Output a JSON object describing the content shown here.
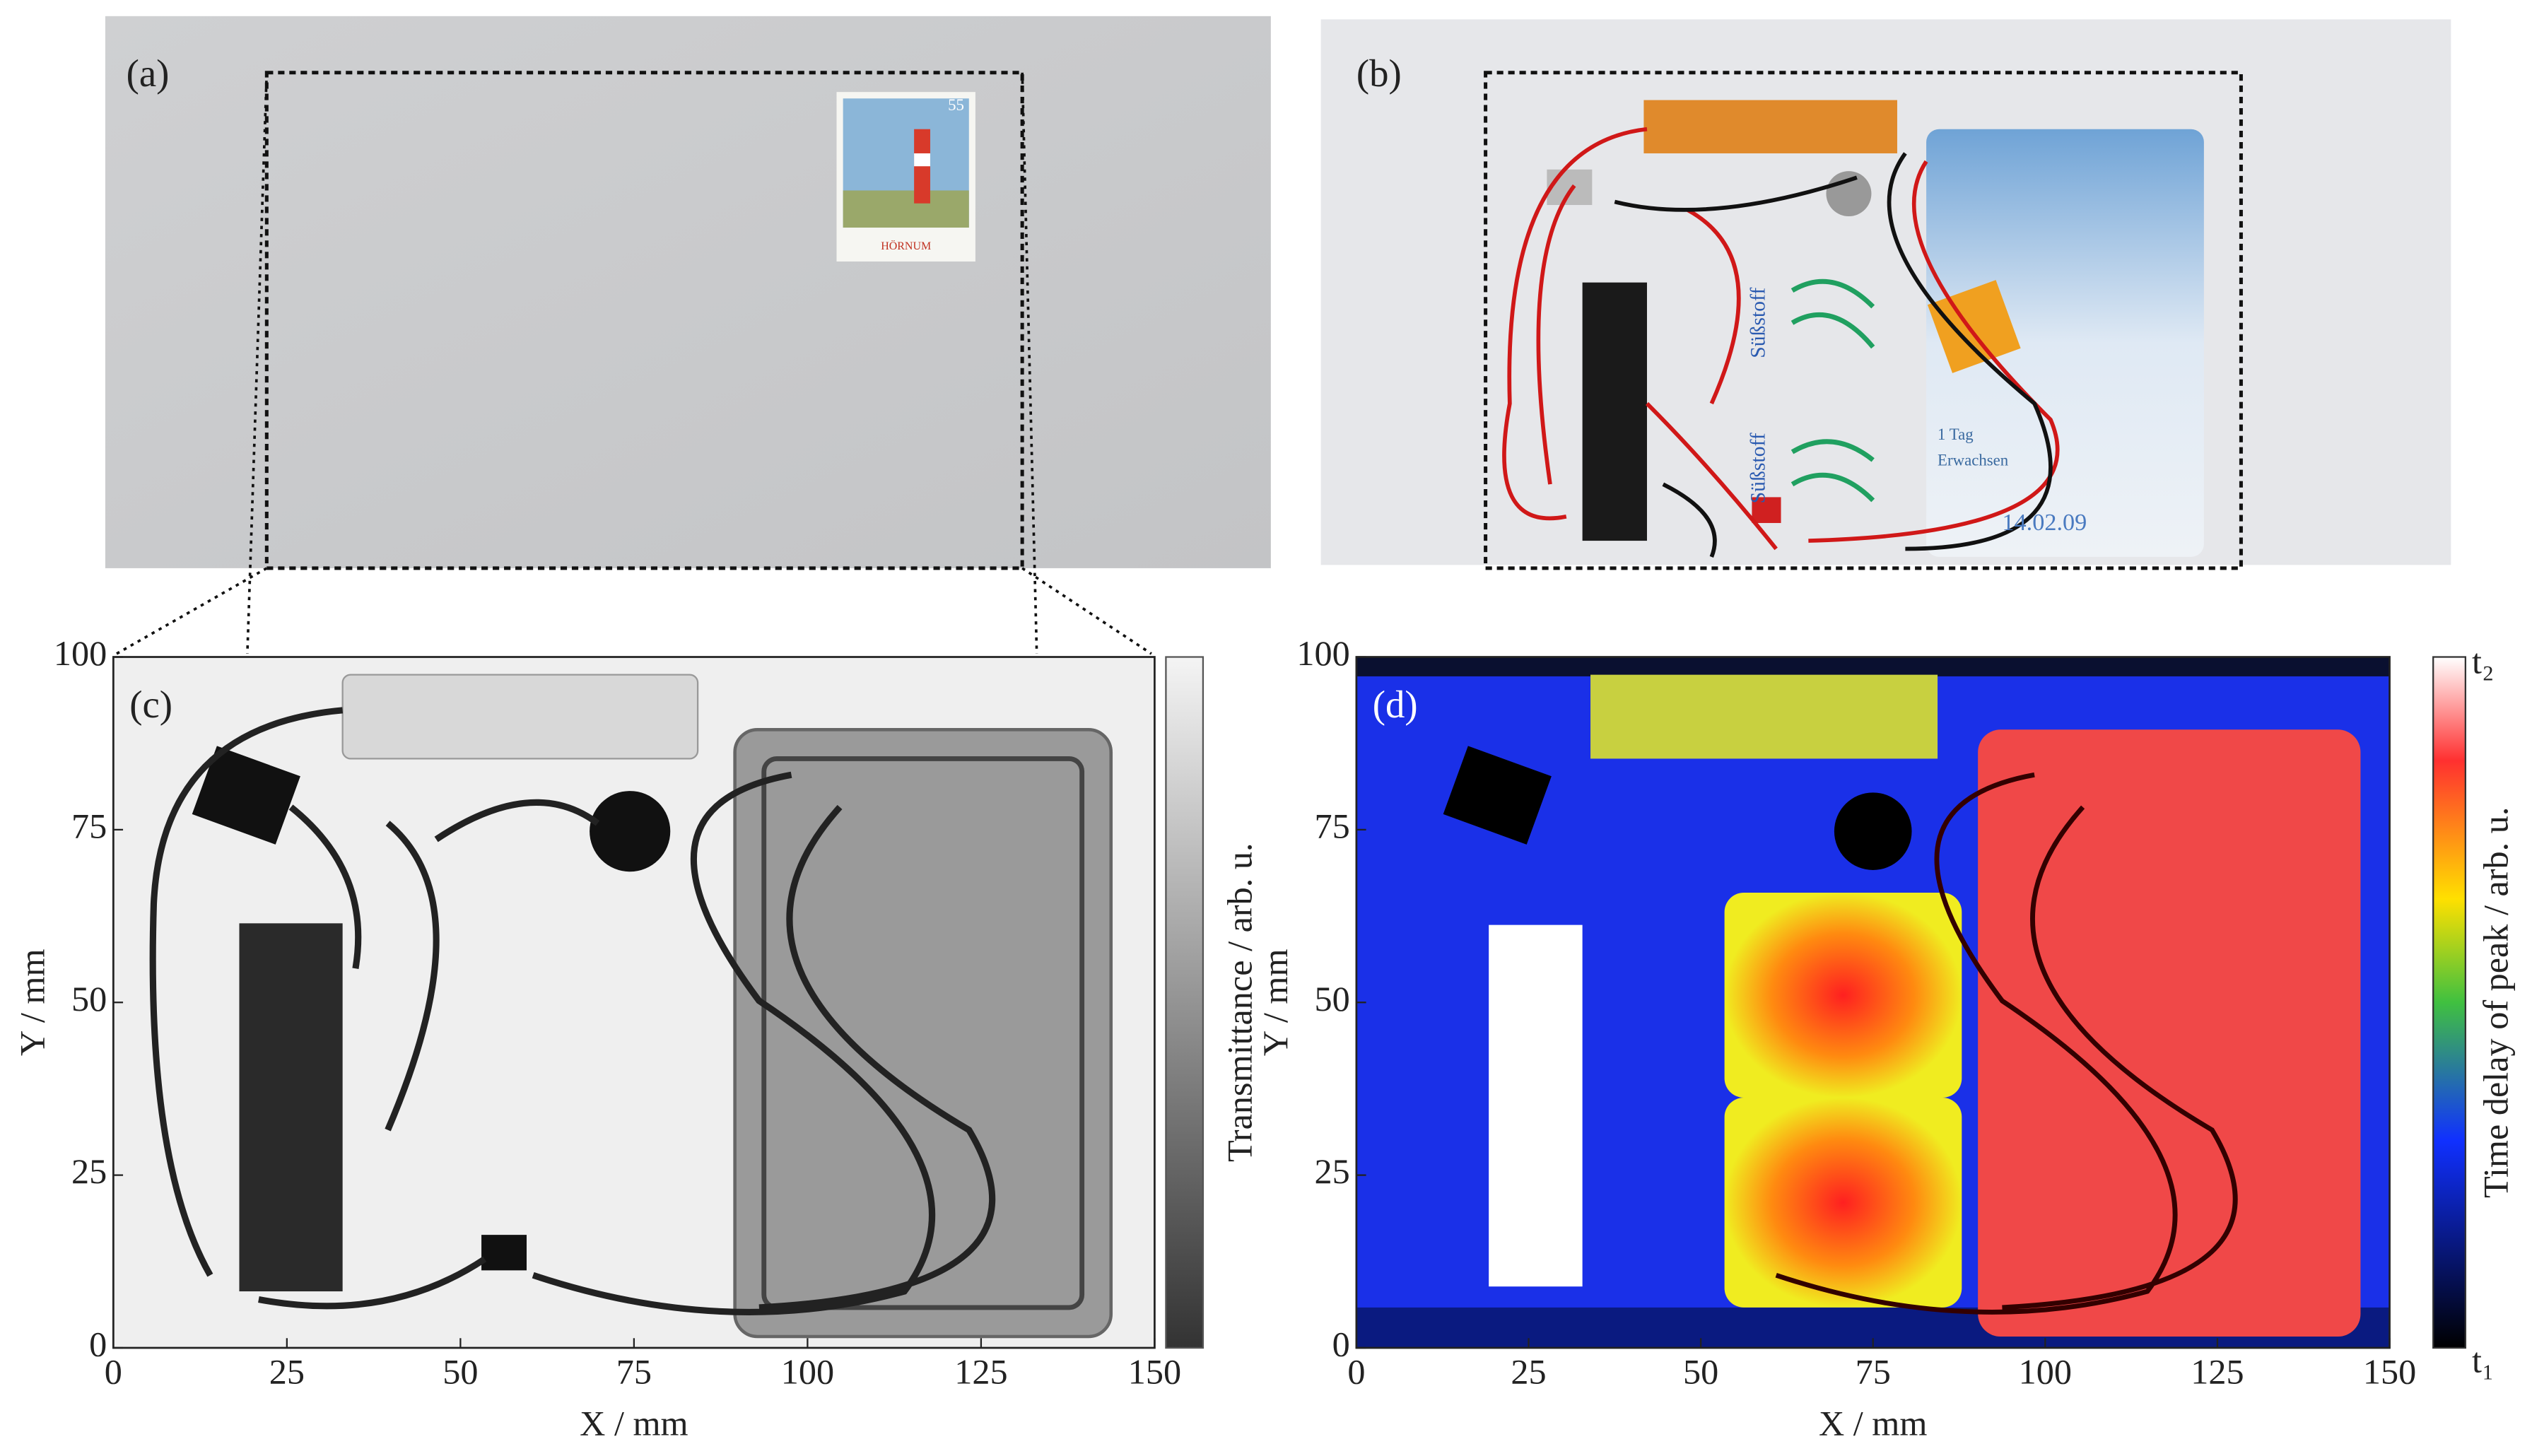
{
  "panels": {
    "a": {
      "label": "(a)",
      "stamp_value": "55",
      "stamp_place": "HÖRNUM"
    },
    "b": {
      "label": "(b)",
      "texts": [
        "Süßstoff",
        "Süßstoff",
        "1 Tag",
        "Erwachsen",
        "14.02.09"
      ]
    },
    "c": {
      "label": "(c)",
      "xlabel": "X / mm",
      "ylabel": "Y / mm",
      "xlim": [
        0,
        150
      ],
      "ylim": [
        0,
        100
      ],
      "xticks": [
        0,
        25,
        50,
        75,
        100,
        125,
        150
      ],
      "yticks": [
        0,
        25,
        50,
        75,
        100
      ],
      "colorbar_label": "Transmittance / arb. u."
    },
    "d": {
      "label": "(d)",
      "xlabel": "X / mm",
      "ylabel": "Y / mm",
      "xlim": [
        0,
        150
      ],
      "ylim": [
        0,
        100
      ],
      "xticks": [
        0,
        25,
        50,
        75,
        100,
        125,
        150
      ],
      "yticks": [
        0,
        25,
        50,
        75,
        100
      ],
      "colorbar_label": "Time delay of peak / arb. u.",
      "colorbar_top": "t₂",
      "colorbar_bottom": "t₁"
    }
  }
}
